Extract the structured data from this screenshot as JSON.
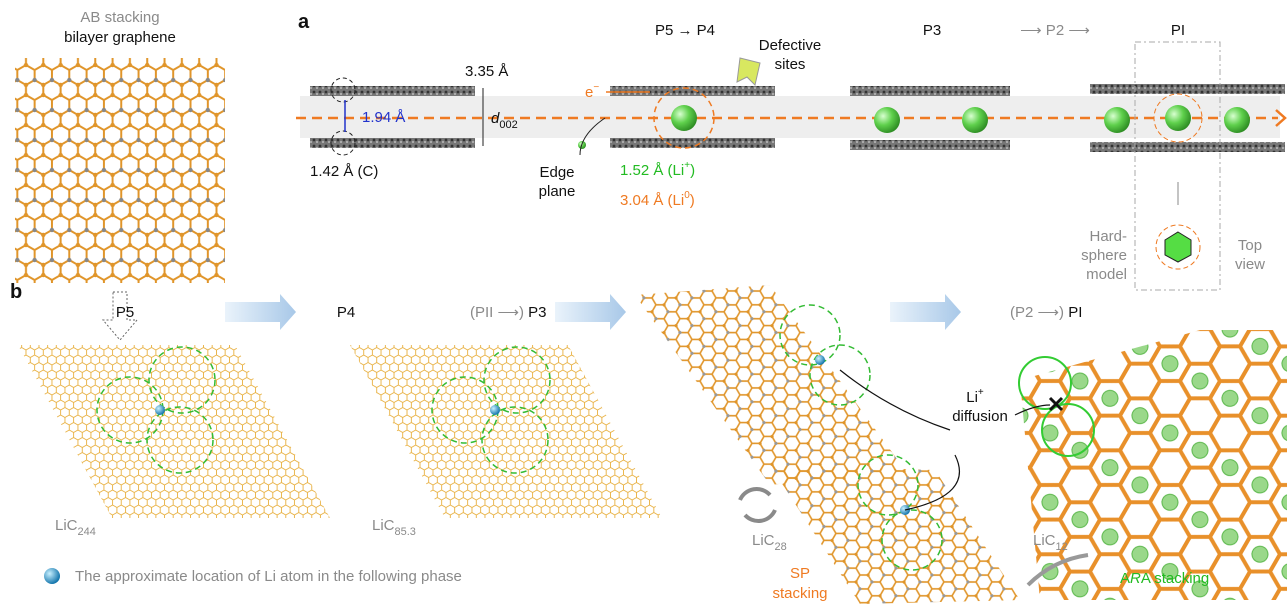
{
  "left": {
    "title_line1": "AB stacking",
    "title_line2": "bilayer graphene"
  },
  "panel_a": {
    "label": "a",
    "p5_p4": "P5 → P4",
    "p3": "P3",
    "p2": "⟶ P2 ⟶",
    "pi": "PI",
    "interlayer": "3.35 Å",
    "defective": [
      "Defective",
      "sites"
    ],
    "electron": [
      "e",
      "−"
    ],
    "distance": "1.94 Å",
    "d002": [
      "d",
      "002"
    ],
    "carbon": "1.42 Å (C)",
    "edge": [
      "Edge",
      "plane"
    ],
    "li_ion": [
      "1.52 Å (Li",
      "+",
      ")"
    ],
    "li_atom": [
      "3.04 Å (Li",
      "0",
      ")"
    ],
    "hard_sphere": [
      "Hard-",
      "sphere",
      "model"
    ],
    "top_view": [
      "Top",
      "view"
    ]
  },
  "panel_b": {
    "label": "b",
    "p5": "P5",
    "p4": "P4",
    "p3": [
      "(PII ⟶) ",
      "P3"
    ],
    "pi": [
      "(P2 ⟶) ",
      "PI"
    ],
    "compounds": [
      [
        "LiC",
        "244"
      ],
      [
        "LiC",
        "85.3"
      ],
      [
        "LiC",
        "28"
      ],
      [
        "LiC",
        "12"
      ]
    ],
    "diffusion": [
      "Li",
      "+",
      "diffusion"
    ],
    "sp": [
      "SP",
      "stacking"
    ],
    "ara": [
      "A",
      "R",
      "A stacking"
    ],
    "legend": "The approximate location of Li atom in the following phase"
  }
}
